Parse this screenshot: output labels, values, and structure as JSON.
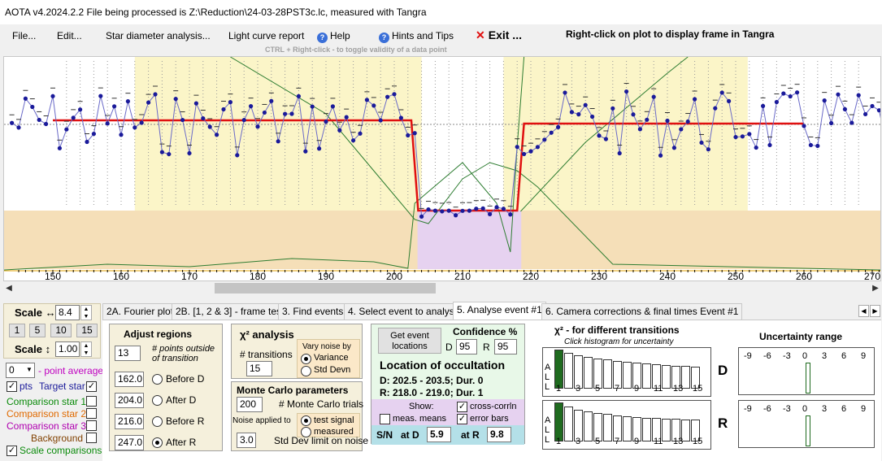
{
  "window": {
    "title": "AOTA v4.2024.2.2    File being processed is Z:\\Reduction\\24-03-28PST3c.lc, measured with Tangra"
  },
  "menu": {
    "file": "File...",
    "edit": "Edit...",
    "star_diameter": "Star diameter analysis...",
    "light_curve_report": "Light curve report",
    "help": "Help",
    "hints": "Hints and Tips",
    "exit": "Exit ...",
    "right_click_hint": "Right-click on plot to display frame in Tangra",
    "ctrl_hint": "CTRL + Right-click  -  to toggle validity of a data point"
  },
  "plot": {
    "x_ticks": [
      "150",
      "160",
      "170",
      "180",
      "190",
      "200",
      "210",
      "220",
      "230",
      "240",
      "250",
      "260",
      "270"
    ],
    "colors": {
      "event_region": "#fbf5c8",
      "lower_band": "#f5dfb8",
      "selection": "#e6d2f0",
      "model": "#e01010",
      "data": "#1a1a9a",
      "chi2": "#2e7d32"
    }
  },
  "scale": {
    "label_h": "Scale ↔",
    "h_value": "8.4",
    "presets": [
      "1",
      "5",
      "10",
      "15"
    ],
    "label_v": "Scale ↕",
    "v_value": "1.00",
    "avg_value": "0",
    "avg_label": "- point average",
    "pts_label": "pts",
    "target_label": "Target star",
    "comp1": "Comparison star 1",
    "comp2": "Comparison star 2",
    "comp3": "Comparison star 3",
    "background": "Background",
    "scale_comparisons": "Scale comparisons"
  },
  "tabs": [
    "2A. Fourier plot",
    "2B. [1, 2 & 3] - frame test",
    "3. Find events",
    "4. Select event to analyse",
    "5. Analyse event #1",
    "6. Camera corrections & final times Event #1"
  ],
  "adjust": {
    "title": "Adjust regions",
    "points_value": "13",
    "points_label": "# points outside of transition",
    "before_d": "162.0",
    "after_d": "204.0",
    "before_r": "216.0",
    "after_r": "247.0",
    "before_d_label": "Before D",
    "after_d_label": "After D",
    "before_r_label": "Before R",
    "after_r_label": "After R"
  },
  "chi2": {
    "title": "χ² analysis",
    "transitions_label": "# transitions",
    "transitions_value": "15",
    "vary_noise": "Vary noise by",
    "variance": "Variance",
    "stddevn": "Std Devn"
  },
  "mc": {
    "title": "Monte Carlo parameters",
    "trials_value": "200",
    "trials_label": "# Monte Carlo trials",
    "noise_label": "Noise applied to",
    "test_signal": "test signal",
    "measured": "measured",
    "sd_value": "3.0",
    "sd_label": "Std Dev limit on noise"
  },
  "event": {
    "get_button": "Get event locations",
    "confidence_label": "Confidence %",
    "d_label": "D",
    "d_value": "95",
    "r_label": "R",
    "r_value": "95",
    "location_title": "Location of occultation",
    "d_line": "D: 202.5 - 203.5; Dur. 0",
    "r_line": "R: 218.0 - 219.0; Dur. 1",
    "show_label": "Show:",
    "cross_corrln": "cross-corrln",
    "meas_means": "meas. means",
    "error_bars": "error bars",
    "sn_label": "S/N",
    "at_d_label": "at D",
    "at_d_value": "5.9",
    "at_r_label": "at R",
    "at_r_value": "9.8"
  },
  "hist": {
    "title": "χ² - for different transitions",
    "subtitle": "Click histogram for uncertainty",
    "side_label": [
      "A",
      "L",
      "L"
    ],
    "tick_labels": [
      "1",
      "3",
      "5",
      "7",
      "9",
      "11",
      "13",
      "15"
    ],
    "d_heights": [
      1.0,
      0.92,
      0.86,
      0.81,
      0.77,
      0.74,
      0.71,
      0.68,
      0.66,
      0.64,
      0.62,
      0.6,
      0.59,
      0.58,
      0.57
    ],
    "r_heights": [
      1.0,
      0.9,
      0.82,
      0.77,
      0.73,
      0.7,
      0.67,
      0.65,
      0.63,
      0.61,
      0.6,
      0.59,
      0.58,
      0.57,
      0.56
    ]
  },
  "uncertainty": {
    "title": "Uncertainty range",
    "ticks": [
      "-9",
      "-6",
      "-3",
      "0",
      "3",
      "6",
      "9"
    ],
    "d_label": "D",
    "r_label": "R"
  }
}
